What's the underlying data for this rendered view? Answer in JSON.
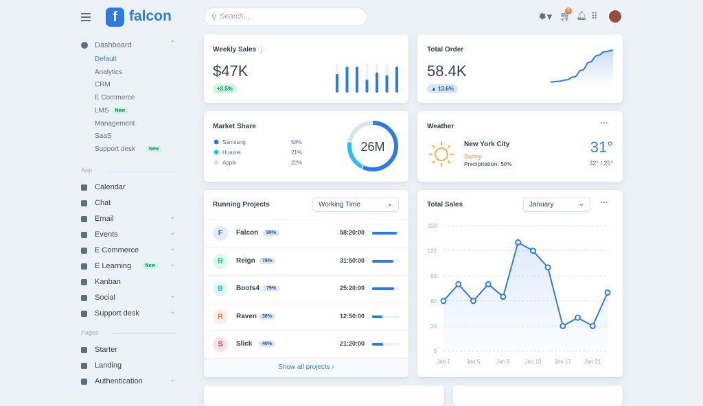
{
  "brand": "falcon",
  "search_placeholder": "Search...",
  "cart_badge": "9",
  "dashboard_menu": {
    "label": "Dashboard",
    "items": [
      {
        "label": "Default",
        "active": true
      },
      {
        "label": "Analytics"
      },
      {
        "label": "CRM"
      },
      {
        "label": "E Commerce"
      },
      {
        "label": "LMS",
        "badge": "New"
      },
      {
        "label": "Management"
      },
      {
        "label": "SaaS"
      },
      {
        "label": "Support desk",
        "badge": "New"
      }
    ]
  },
  "sections": [
    {
      "label": "App",
      "items": [
        {
          "label": "Calendar"
        },
        {
          "label": "Chat"
        },
        {
          "label": "Email",
          "expandable": true
        },
        {
          "label": "Events",
          "expandable": true
        },
        {
          "label": "E Commerce",
          "expandable": true
        },
        {
          "label": "E Learning",
          "badge": "New",
          "expandable": true
        },
        {
          "label": "Kanban"
        },
        {
          "label": "Social",
          "expandable": true
        },
        {
          "label": "Support desk",
          "expandable": true
        }
      ]
    },
    {
      "label": "Pages",
      "items": [
        {
          "label": "Starter"
        },
        {
          "label": "Landing"
        },
        {
          "label": "Authentication",
          "expandable": true
        }
      ]
    }
  ],
  "weekly_sales": {
    "title": "Weekly Sales",
    "value": "$47K",
    "change": "+3.5%",
    "bars": {
      "values": [
        65,
        90,
        90,
        45,
        70,
        60,
        90
      ],
      "ylim": [
        0,
        100
      ],
      "color": "#2c7be5"
    }
  },
  "total_order": {
    "title": "Total Order",
    "value": "58.4K",
    "change": "13.6%",
    "curve": {
      "values": [
        8,
        10,
        14,
        22,
        40,
        62,
        80,
        90,
        94
      ],
      "ylim": [
        0,
        100
      ],
      "color": "#2c7be5"
    }
  },
  "market_share": {
    "title": "Market Share",
    "total": "26M",
    "categories": [
      "Samsung",
      "Huawei",
      "Apple"
    ],
    "values": [
      58,
      21,
      22
    ],
    "value_labels": [
      "58%",
      "21%",
      "22%"
    ],
    "colors": [
      "#2c7be5",
      "#27bcfd",
      "#d8e2ef"
    ]
  },
  "weather": {
    "title": "Weather",
    "city": "New York City",
    "condition": "Sunny",
    "precipitation": "Precipitation: 50%",
    "temperature": "31°",
    "range": "32° / 25°"
  },
  "running_projects": {
    "title": "Running Projects",
    "filter": "Working Time",
    "footer": "Show all projects ›",
    "rows": [
      {
        "initial": "F",
        "name": "Falcon",
        "progress": 90,
        "progress_label": "90%",
        "time": "58:20:00",
        "color": "#2c7be5"
      },
      {
        "initial": "R",
        "name": "Reign",
        "progress": 78,
        "progress_label": "78%",
        "time": "31:50:00",
        "color": "#00d27a"
      },
      {
        "initial": "B",
        "name": "Boots4",
        "progress": 79,
        "progress_label": "79%",
        "time": "25:20:00",
        "color": "#27bcfd"
      },
      {
        "initial": "R",
        "name": "Raven",
        "progress": 38,
        "progress_label": "38%",
        "time": "12:50:00",
        "color": "#f5803e"
      },
      {
        "initial": "S",
        "name": "Slick",
        "progress": 40,
        "progress_label": "40%",
        "time": "21:20:00",
        "color": "#e63757"
      }
    ]
  },
  "total_sales": {
    "type": "line",
    "title": "Total Sales",
    "filter": "January",
    "color": "#2c7be5",
    "categories": [
      "Jan 1",
      null,
      "Jan 5",
      null,
      "Jan 9",
      null,
      "Jan 13",
      null,
      "Jan 17",
      null,
      "Jan 21",
      null
    ],
    "values": [
      60,
      80,
      60,
      80,
      65,
      130,
      120,
      100,
      30,
      40,
      30,
      70
    ],
    "ylim": [
      0,
      150
    ],
    "yticks": [
      0,
      30,
      60,
      90,
      120,
      150
    ],
    "grid": true
  }
}
